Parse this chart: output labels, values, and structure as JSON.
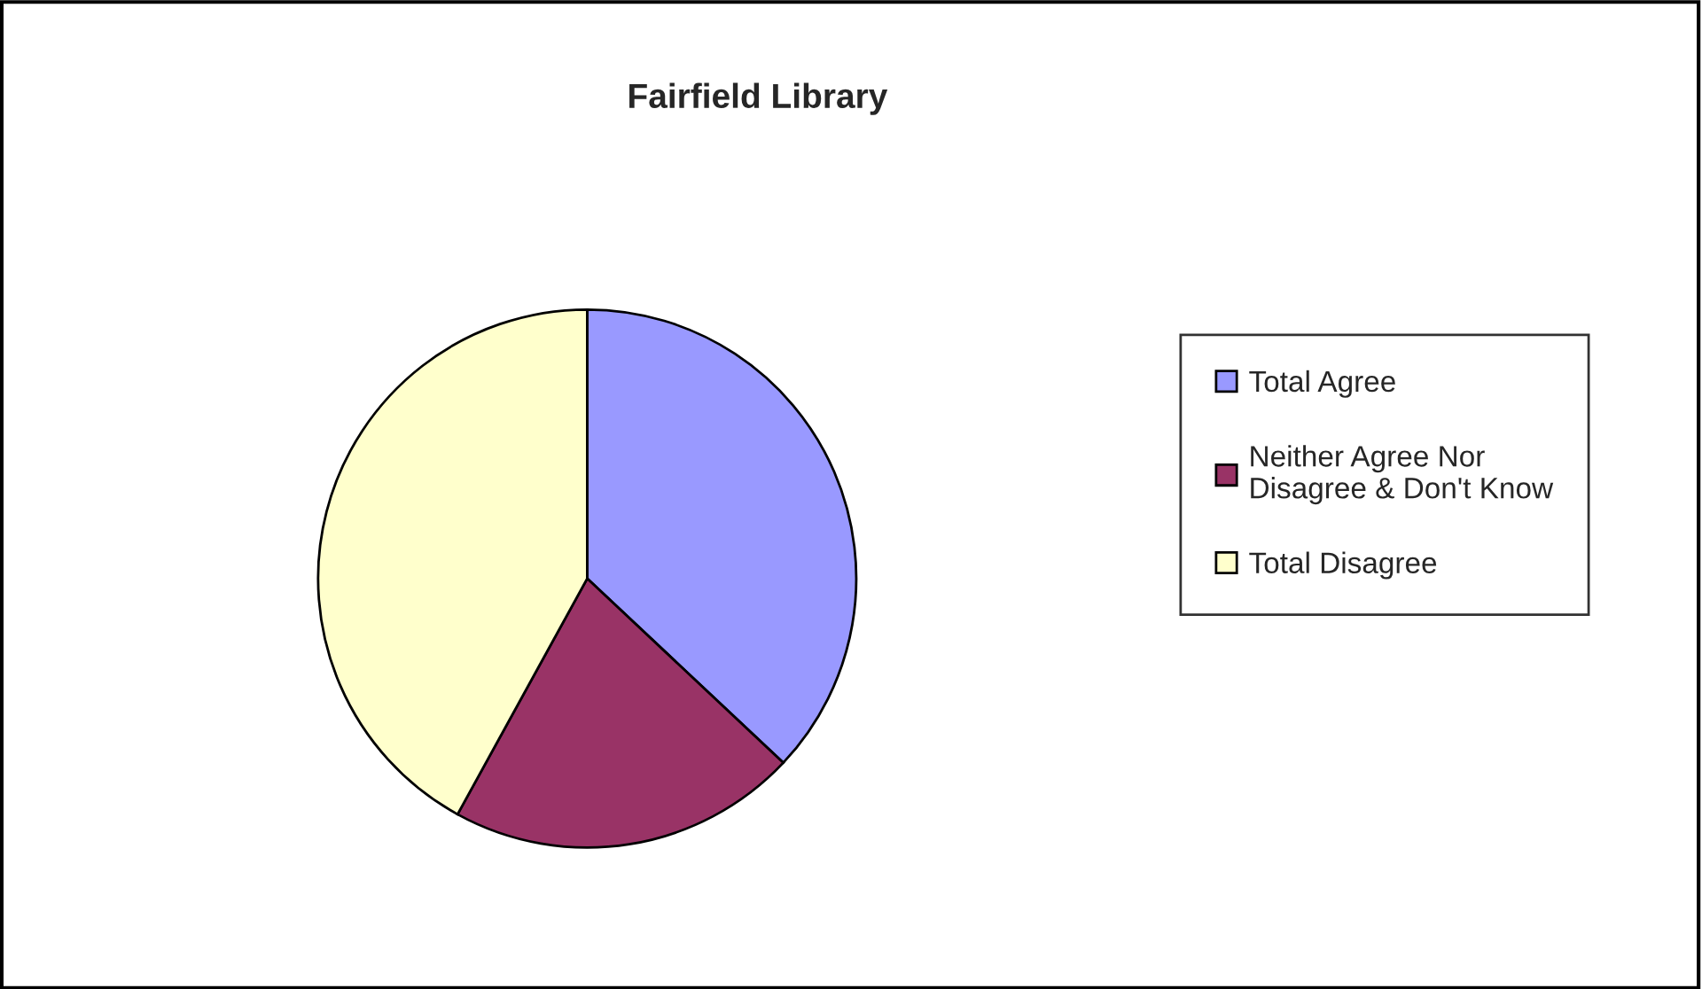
{
  "chart_data": {
    "type": "pie",
    "title": "Fairfield Library",
    "categories": [
      "Total Agree",
      "Neither Agree Nor\nDisagree & Don't Know",
      "Total Disagree"
    ],
    "values": [
      37,
      21,
      42
    ],
    "colors": [
      "#9999ff",
      "#993366",
      "#ffffcc"
    ],
    "legend": "right"
  }
}
